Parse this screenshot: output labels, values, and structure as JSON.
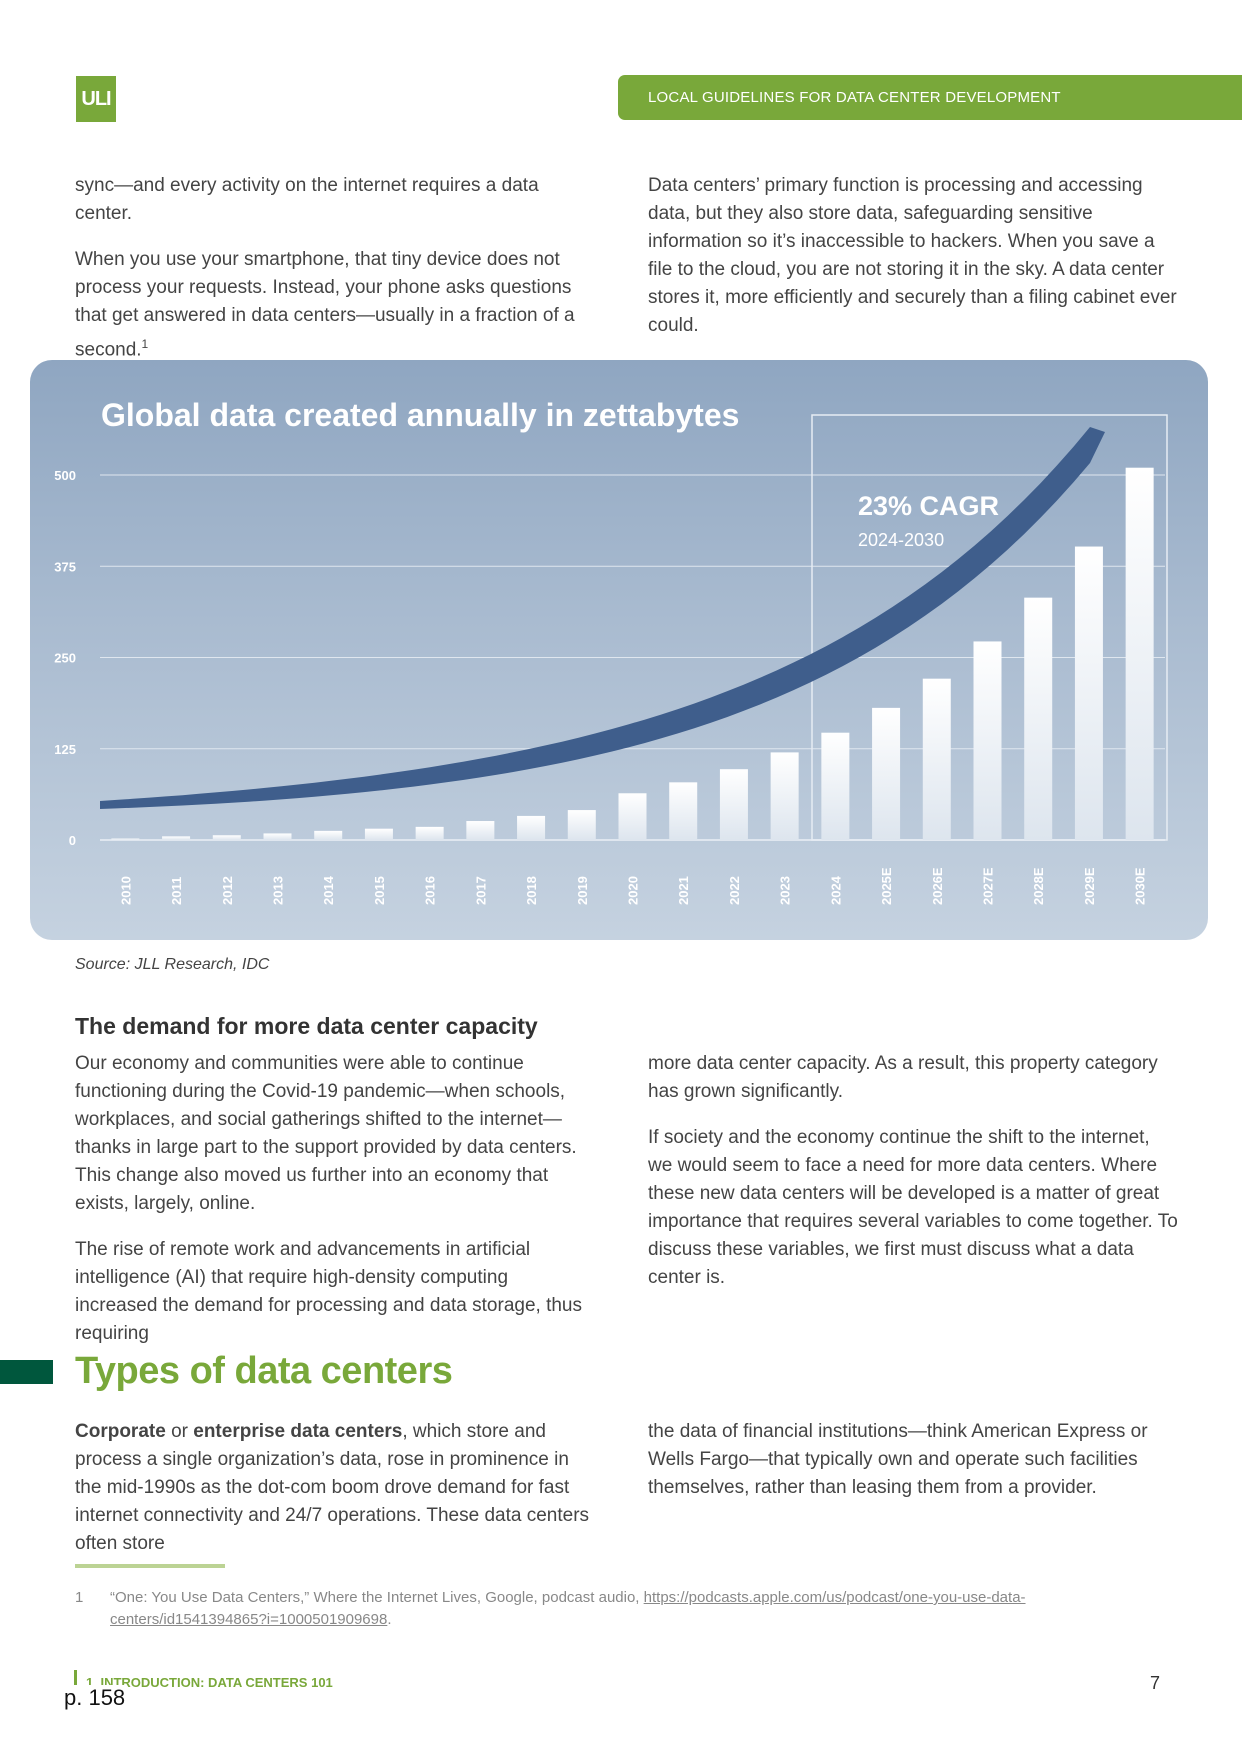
{
  "header": {
    "logo_text": "ULI",
    "band_title": "LOCAL GUIDELINES FOR DATA CENTER DEVELOPMENT"
  },
  "intro": {
    "left_p1": "sync—and every activity on the internet requires a data center.",
    "left_p2": "When you use your smartphone, that tiny device does not process your requests. Instead, your phone asks questions that get answered in data centers—usually in a fraction of a second.",
    "left_p2_footnote": "1",
    "right_p1": "Data centers’ primary function is processing and accessing data, but they also store data, safeguarding sensitive information so it’s inaccessible to hackers. When you save a file to the cloud, you are not storing it in the sky. A data center stores it, more efficiently and securely than a filing cabinet ever could."
  },
  "chart_data": {
    "type": "bar",
    "title": "Global data created annually in zettabytes",
    "categories": [
      "2010",
      "2011",
      "2012",
      "2013",
      "2014",
      "2015",
      "2016",
      "2017",
      "2018",
      "2019",
      "2020",
      "2021",
      "2022",
      "2023",
      "2024",
      "2025E",
      "2026E",
      "2027E",
      "2028E",
      "2029E",
      "2030E"
    ],
    "values": [
      2,
      5,
      6.5,
      9,
      12.5,
      15.5,
      18,
      26,
      33,
      41,
      64,
      79,
      97,
      120,
      147,
      181,
      221,
      272,
      332,
      402,
      510
    ],
    "yticks": [
      "500",
      "375",
      "250",
      "125",
      "0"
    ],
    "ylim": [
      0,
      520
    ],
    "grid": true,
    "annotation": {
      "label": "23% CAGR",
      "sublabel": "2024-2030"
    },
    "highlight_range": [
      "2024",
      "2030E"
    ],
    "colors": {
      "panel": "#a3b6cc",
      "bars": "#ffffff",
      "trend_arrow": "#3f5e8c",
      "grid": "#dfe6ef"
    }
  },
  "source": "Source: JLL Research, IDC",
  "demand": {
    "heading": "The demand for more data center capacity",
    "left_p1": "Our economy and communities were able to continue functioning during the Covid-19 pandemic—when schools, workplaces, and social gatherings shifted to the internet—thanks in large part to the support provided by data centers. This change also moved us further into an economy that exists, largely, online.",
    "left_p2": "The rise of remote work and advancements in artificial intelligence (AI) that require high-density computing increased the demand for processing and data storage, thus requiring",
    "right_p1": "more data center capacity. As a result, this property category has grown significantly.",
    "right_p2": "If society and the economy continue the shift to the internet, we would seem to face a need for more data centers. Where these new data centers will be developed is a matter of great importance that requires several variables to come together. To discuss these variables, we first must discuss what a data center is."
  },
  "types": {
    "heading": "Types of data centers",
    "bold1": "Corporate",
    "or_text": " or ",
    "bold2": "enterprise data centers",
    "left_rest": ", which store and process a single organization’s data, rose in prominence in the mid-1990s as the dot-com boom drove demand for fast internet connectivity and 24/7 operations. These data centers often store",
    "right_p1": "the data of financial institutions—think American Express or Wells Fargo—that typically own and operate such facilities themselves, rather than leasing them from a provider."
  },
  "footnote": {
    "number": "1",
    "text": "“One: You Use Data Centers,” Where the Internet Lives, Google, podcast audio, ",
    "link": "https://podcasts.apple.com/us/podcast/one-you-use-data-centers/id1541394865?i=1000501909698",
    "end": "."
  },
  "footer": {
    "section": "1. INTRODUCTION: DATA CENTERS 101",
    "page_number": "7",
    "page_stamp": "p. 158"
  }
}
